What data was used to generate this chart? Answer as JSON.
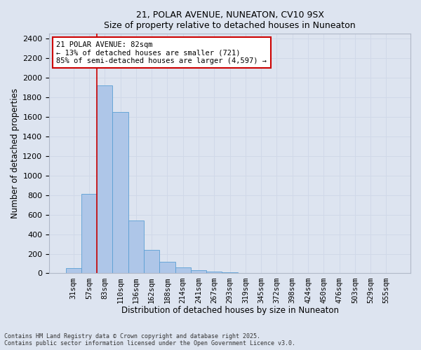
{
  "title_line1": "21, POLAR AVENUE, NUNEATON, CV10 9SX",
  "title_line2": "Size of property relative to detached houses in Nuneaton",
  "xlabel": "Distribution of detached houses by size in Nuneaton",
  "ylabel": "Number of detached properties",
  "categories": [
    "31sqm",
    "57sqm",
    "83sqm",
    "110sqm",
    "136sqm",
    "162sqm",
    "188sqm",
    "214sqm",
    "241sqm",
    "267sqm",
    "293sqm",
    "319sqm",
    "345sqm",
    "372sqm",
    "398sqm",
    "424sqm",
    "450sqm",
    "476sqm",
    "503sqm",
    "529sqm",
    "555sqm"
  ],
  "values": [
    55,
    810,
    1920,
    1650,
    540,
    240,
    115,
    58,
    35,
    18,
    8,
    0,
    0,
    0,
    0,
    0,
    0,
    0,
    0,
    0,
    0
  ],
  "bar_color": "#aec6e8",
  "bar_edge_color": "#5a9fd4",
  "vline_color": "#cc0000",
  "annotation_text": "21 POLAR AVENUE: 82sqm\n← 13% of detached houses are smaller (721)\n85% of semi-detached houses are larger (4,597) →",
  "annotation_box_color": "#ffffff",
  "annotation_box_edge_color": "#cc0000",
  "ylim": [
    0,
    2450
  ],
  "yticks": [
    0,
    200,
    400,
    600,
    800,
    1000,
    1200,
    1400,
    1600,
    1800,
    2000,
    2200,
    2400
  ],
  "grid_color": "#d0d8e8",
  "bg_color": "#dde4f0",
  "footer": "Contains HM Land Registry data © Crown copyright and database right 2025.\nContains public sector information licensed under the Open Government Licence v3.0."
}
